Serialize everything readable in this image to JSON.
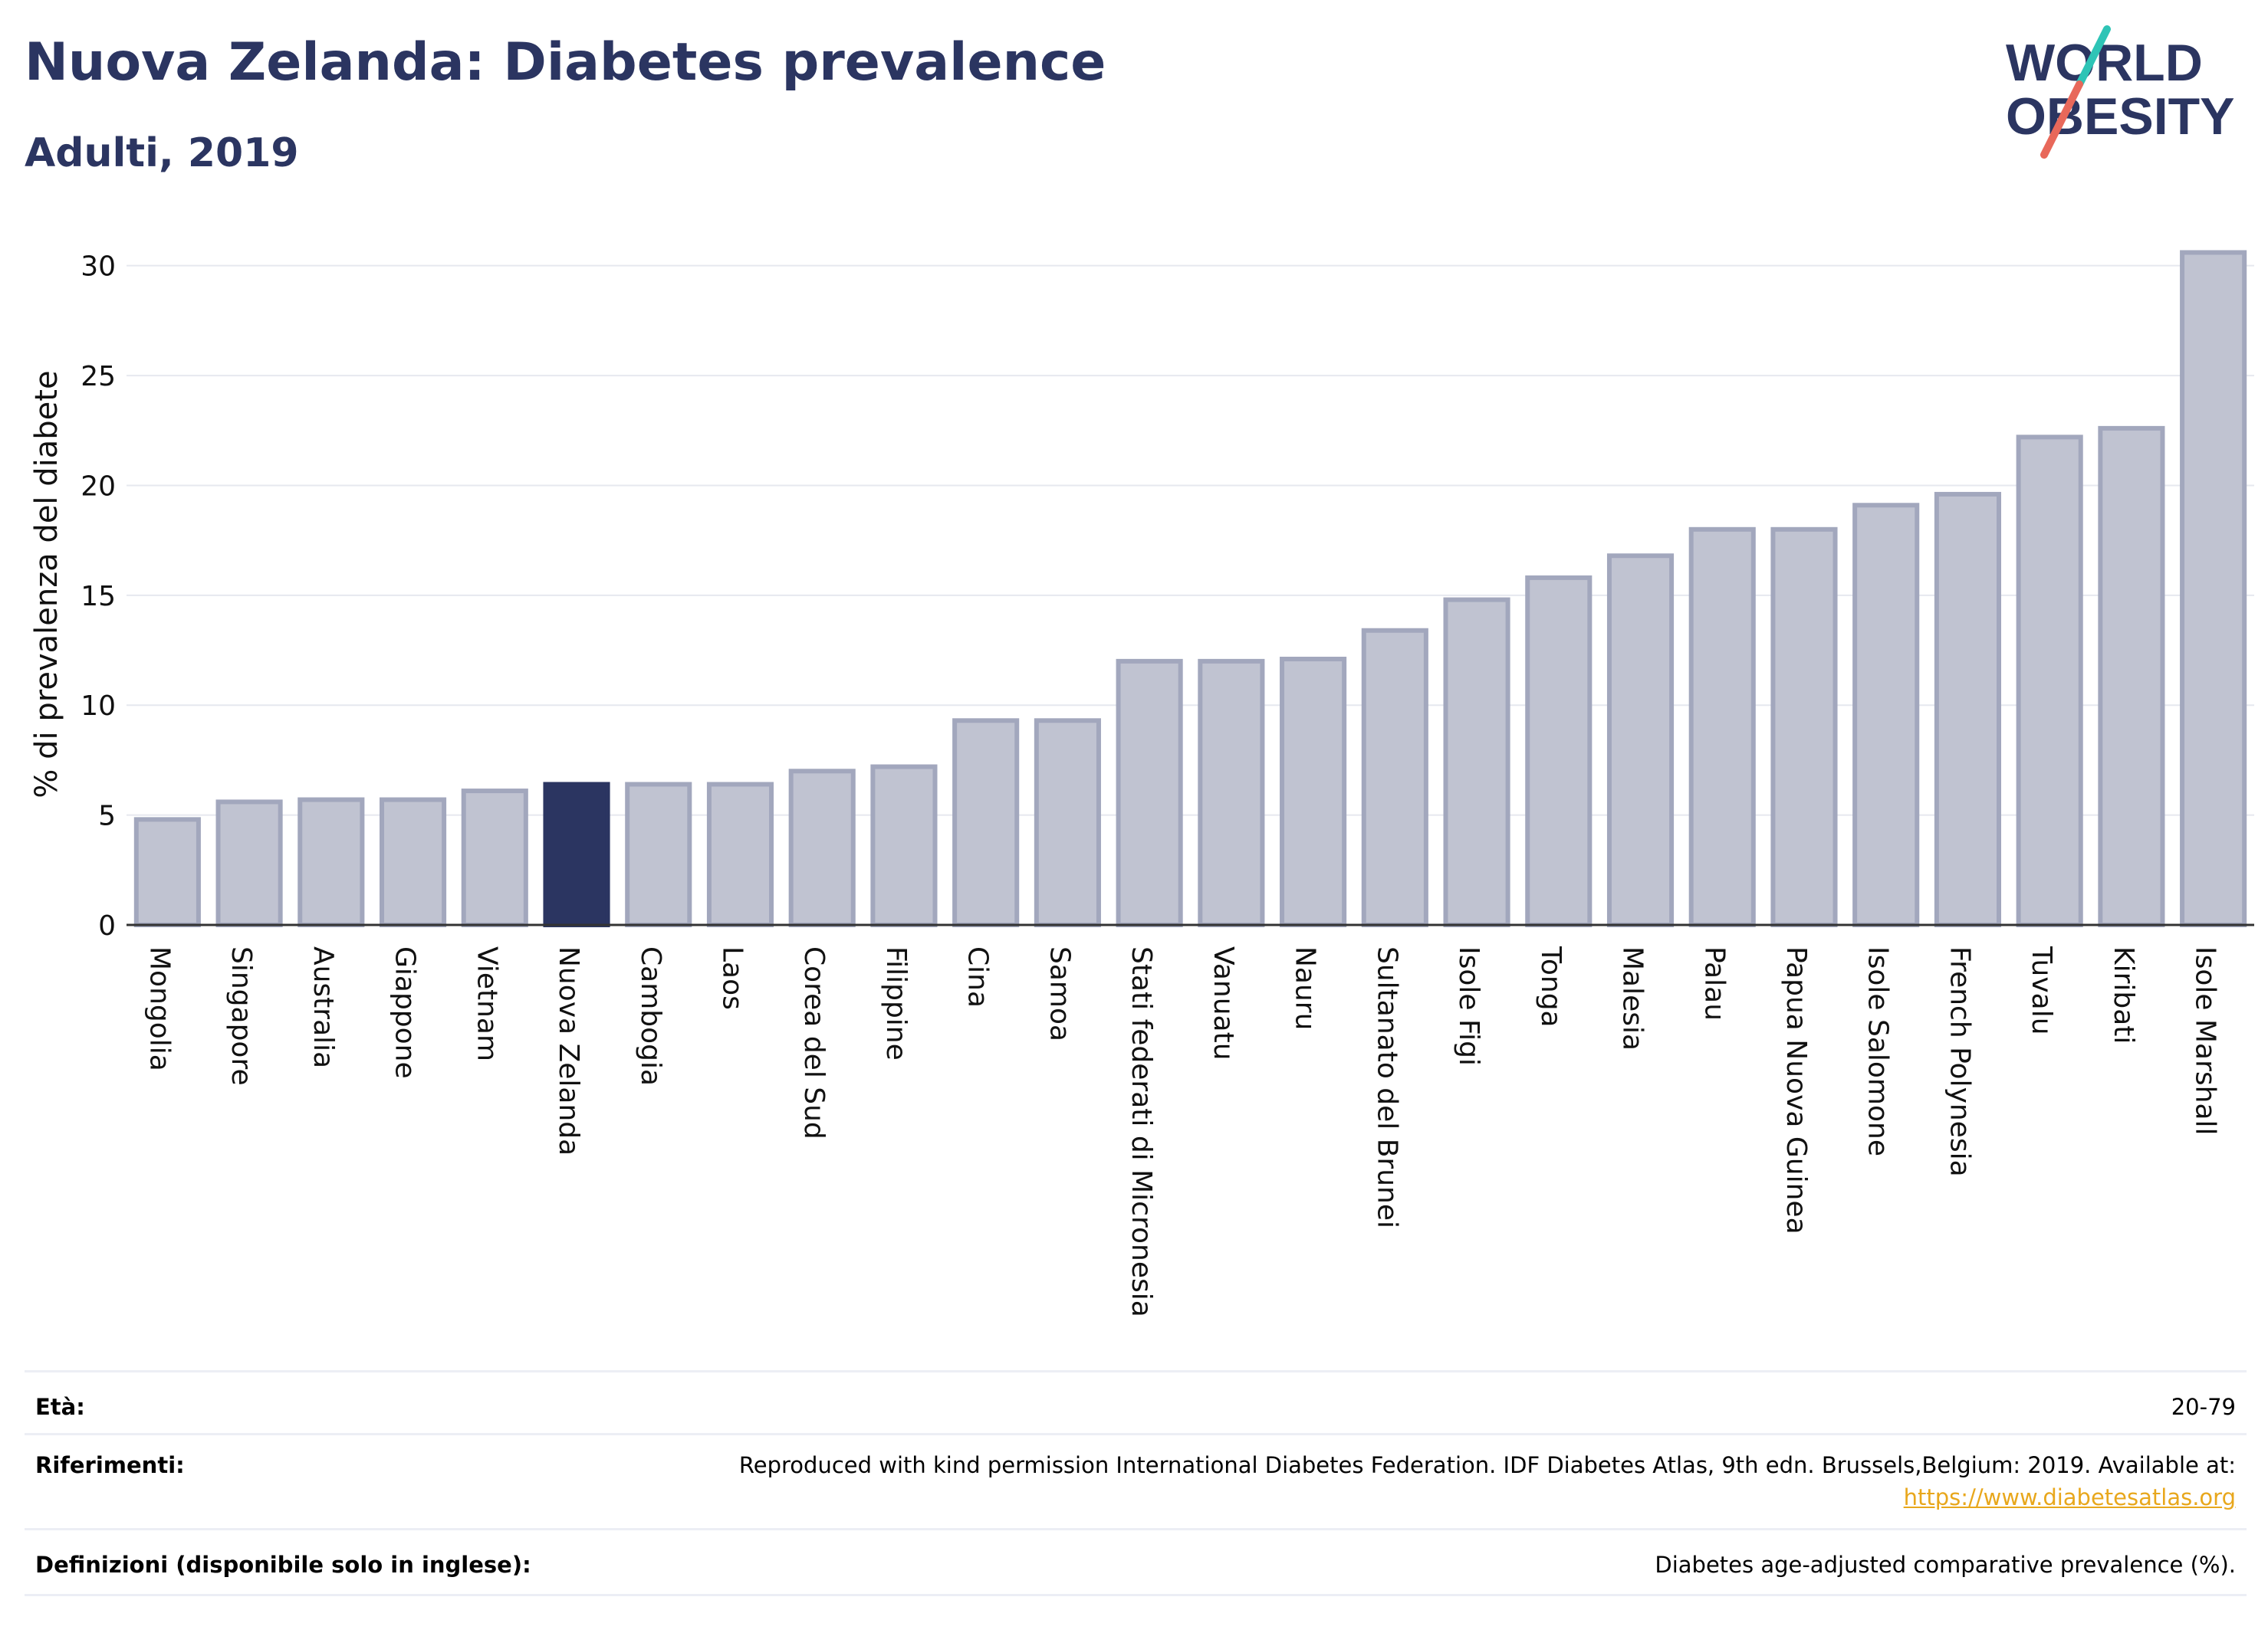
{
  "header": {
    "title": "Nuova Zelanda: Diabetes prevalence",
    "subtitle": "Adulti, 2019"
  },
  "logo": {
    "line1": "WORLD",
    "line2": "OBESITY",
    "accent_teal": "#2ec4b6",
    "accent_coral": "#e8685a"
  },
  "colors": {
    "bar_fill": "#c0c3d1",
    "bar_stroke": "#a2a7bd",
    "highlight": "#2b3561",
    "title": "#2b3561",
    "link": "#e8a71c"
  },
  "chart_data": {
    "type": "bar",
    "ylabel": "% di prevalenza del diabete",
    "ylim": [
      0,
      31
    ],
    "yticks": [
      0,
      5,
      10,
      15,
      20,
      25,
      30
    ],
    "grid": true,
    "highlight": "Nuova Zelanda",
    "categories": [
      "Mongolia",
      "Singapore",
      "Australia",
      "Giappone",
      "Vietnam",
      "Nuova Zelanda",
      "Cambogia",
      "Laos",
      "Corea del Sud",
      "Filippine",
      "Cina",
      "Samoa",
      "Stati federati di Micronesia",
      "Vanuatu",
      "Nauru",
      "Sultanato del Brunei",
      "Isole Figi",
      "Tonga",
      "Malesia",
      "Palau",
      "Papua Nuova Guinea",
      "Isole Salomone",
      "French Polynesia",
      "Tuvalu",
      "Kiribati",
      "Isole Marshall"
    ],
    "values": [
      4.8,
      5.6,
      5.7,
      5.7,
      6.1,
      6.4,
      6.4,
      6.4,
      7.0,
      7.2,
      9.3,
      9.3,
      12.0,
      12.0,
      12.1,
      13.4,
      14.8,
      15.8,
      16.8,
      18.0,
      18.0,
      19.1,
      19.6,
      22.2,
      22.6,
      30.6
    ]
  },
  "info": {
    "age_label": "Età:",
    "age_value": "20-79",
    "refs_label": "Riferimenti:",
    "refs_value": "Reproduced with kind permission International Diabetes Federation. IDF Diabetes Atlas, 9th edn. Brussels,Belgium: 2019. Available at:",
    "refs_link": "https://www.diabetesatlas.org",
    "defs_label": "Definizioni (disponibile solo in inglese):",
    "defs_value": "Diabetes age-adjusted comparative prevalence (%)."
  }
}
